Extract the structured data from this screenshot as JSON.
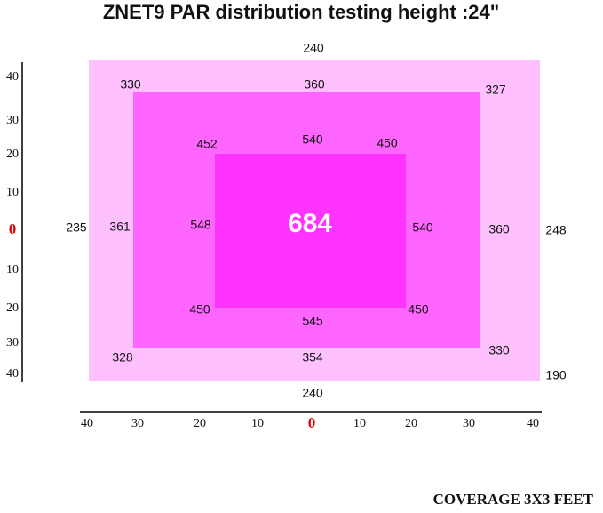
{
  "title": "ZNET9  PAR distribution testing  height :24\"",
  "readings": [
    "240",
    "330",
    "360",
    "327",
    "452",
    "540",
    "450",
    "235",
    "361",
    "548",
    "684",
    "540",
    "360",
    "248",
    "450",
    "545",
    "450",
    "328",
    "354",
    "330",
    "190",
    "240"
  ],
  "y_axis_labels": [
    "40",
    "30",
    "20",
    "10",
    "0",
    "10",
    "20",
    "30",
    "40"
  ],
  "x_axis_labels": [
    "40",
    "30",
    "20",
    "10",
    "0",
    "10",
    "20",
    "30",
    "40"
  ],
  "footer": "COVERAGE  3X3 FEET"
}
